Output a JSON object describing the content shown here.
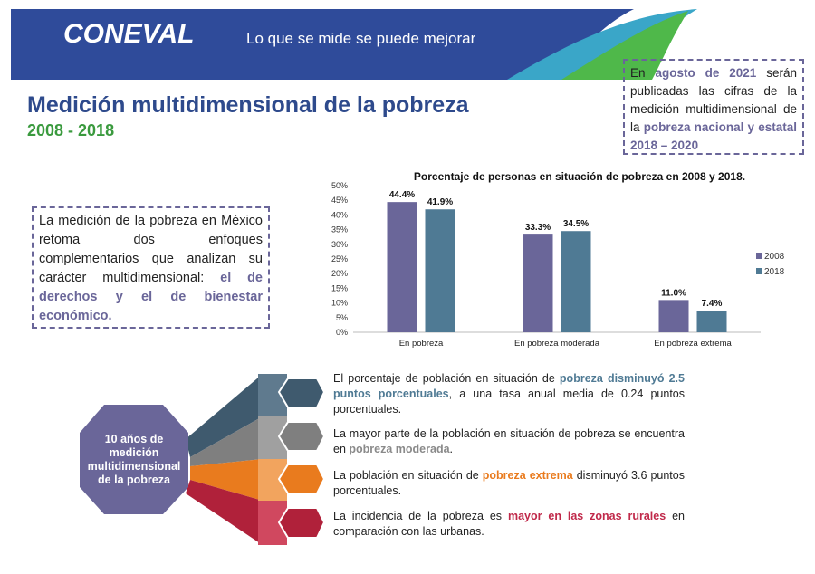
{
  "header": {
    "logo": "CONEVAL",
    "tagline": "Lo que se mide se puede mejorar"
  },
  "title": "Medición multidimensional de la pobreza",
  "subtitle": "2008 - 2018",
  "notice": [
    "En ",
    "agosto de 2021",
    " serán publicadas las cifras de la medición multidimensional de la ",
    "pobreza nacional y estatal 2018 – 2020"
  ],
  "intro": [
    "La medición de la pobreza en México retoma dos enfoques complementarios que analizan su carácter multidimensional: ",
    "el de derechos y el de bienestar económico."
  ],
  "chart_data": {
    "type": "bar",
    "title": "Porcentaje de personas en situación de pobreza en 2008 y 2018.",
    "categories": [
      "En pobreza",
      "En pobreza moderada",
      "En pobreza extrema"
    ],
    "series": [
      {
        "name": "2008",
        "color": "#6a6699",
        "values": [
          44.4,
          33.3,
          11.0
        ],
        "value_labels": [
          "44.4%",
          "33.3%",
          "11.0%"
        ]
      },
      {
        "name": "2018",
        "color": "#4f7a94",
        "values": [
          41.9,
          34.5,
          7.4
        ],
        "value_labels": [
          "41.9%",
          "34.5%",
          "7.4%"
        ]
      }
    ],
    "ylim": [
      0,
      50
    ],
    "yticks": [
      {
        "value": 0,
        "label": "0%"
      },
      {
        "value": 5,
        "label": "5%"
      },
      {
        "value": 10,
        "label": "10%"
      },
      {
        "value": 15,
        "label": "15%"
      },
      {
        "value": 20,
        "label": "20%"
      },
      {
        "value": 25,
        "label": "25%"
      },
      {
        "value": 30,
        "label": "30%"
      },
      {
        "value": 35,
        "label": "35%"
      },
      {
        "value": 40,
        "label": "40%"
      },
      {
        "value": 45,
        "label": "45%"
      },
      {
        "value": 50,
        "label": "50%"
      }
    ],
    "grid": false,
    "legend": "right"
  },
  "summary": {
    "hub": "10 años de medición multidimensional de la pobreza",
    "items": [
      [
        "El porcentaje de población en situación de ",
        "pobreza disminuyó 2.5 puntos porcentuales",
        ", a una tasa anual media de 0.24 puntos porcentuales."
      ],
      [
        "La mayor parte de la población en situación de pobreza se encuentra en ",
        "pobreza moderada",
        "."
      ],
      [
        "La población en situación de ",
        "pobreza extrema",
        " disminuyó 3.6 puntos porcentuales."
      ],
      [
        "La incidencia de la pobreza es ",
        "mayor en las zonas rurales",
        " en comparación con las urbanas."
      ]
    ]
  }
}
